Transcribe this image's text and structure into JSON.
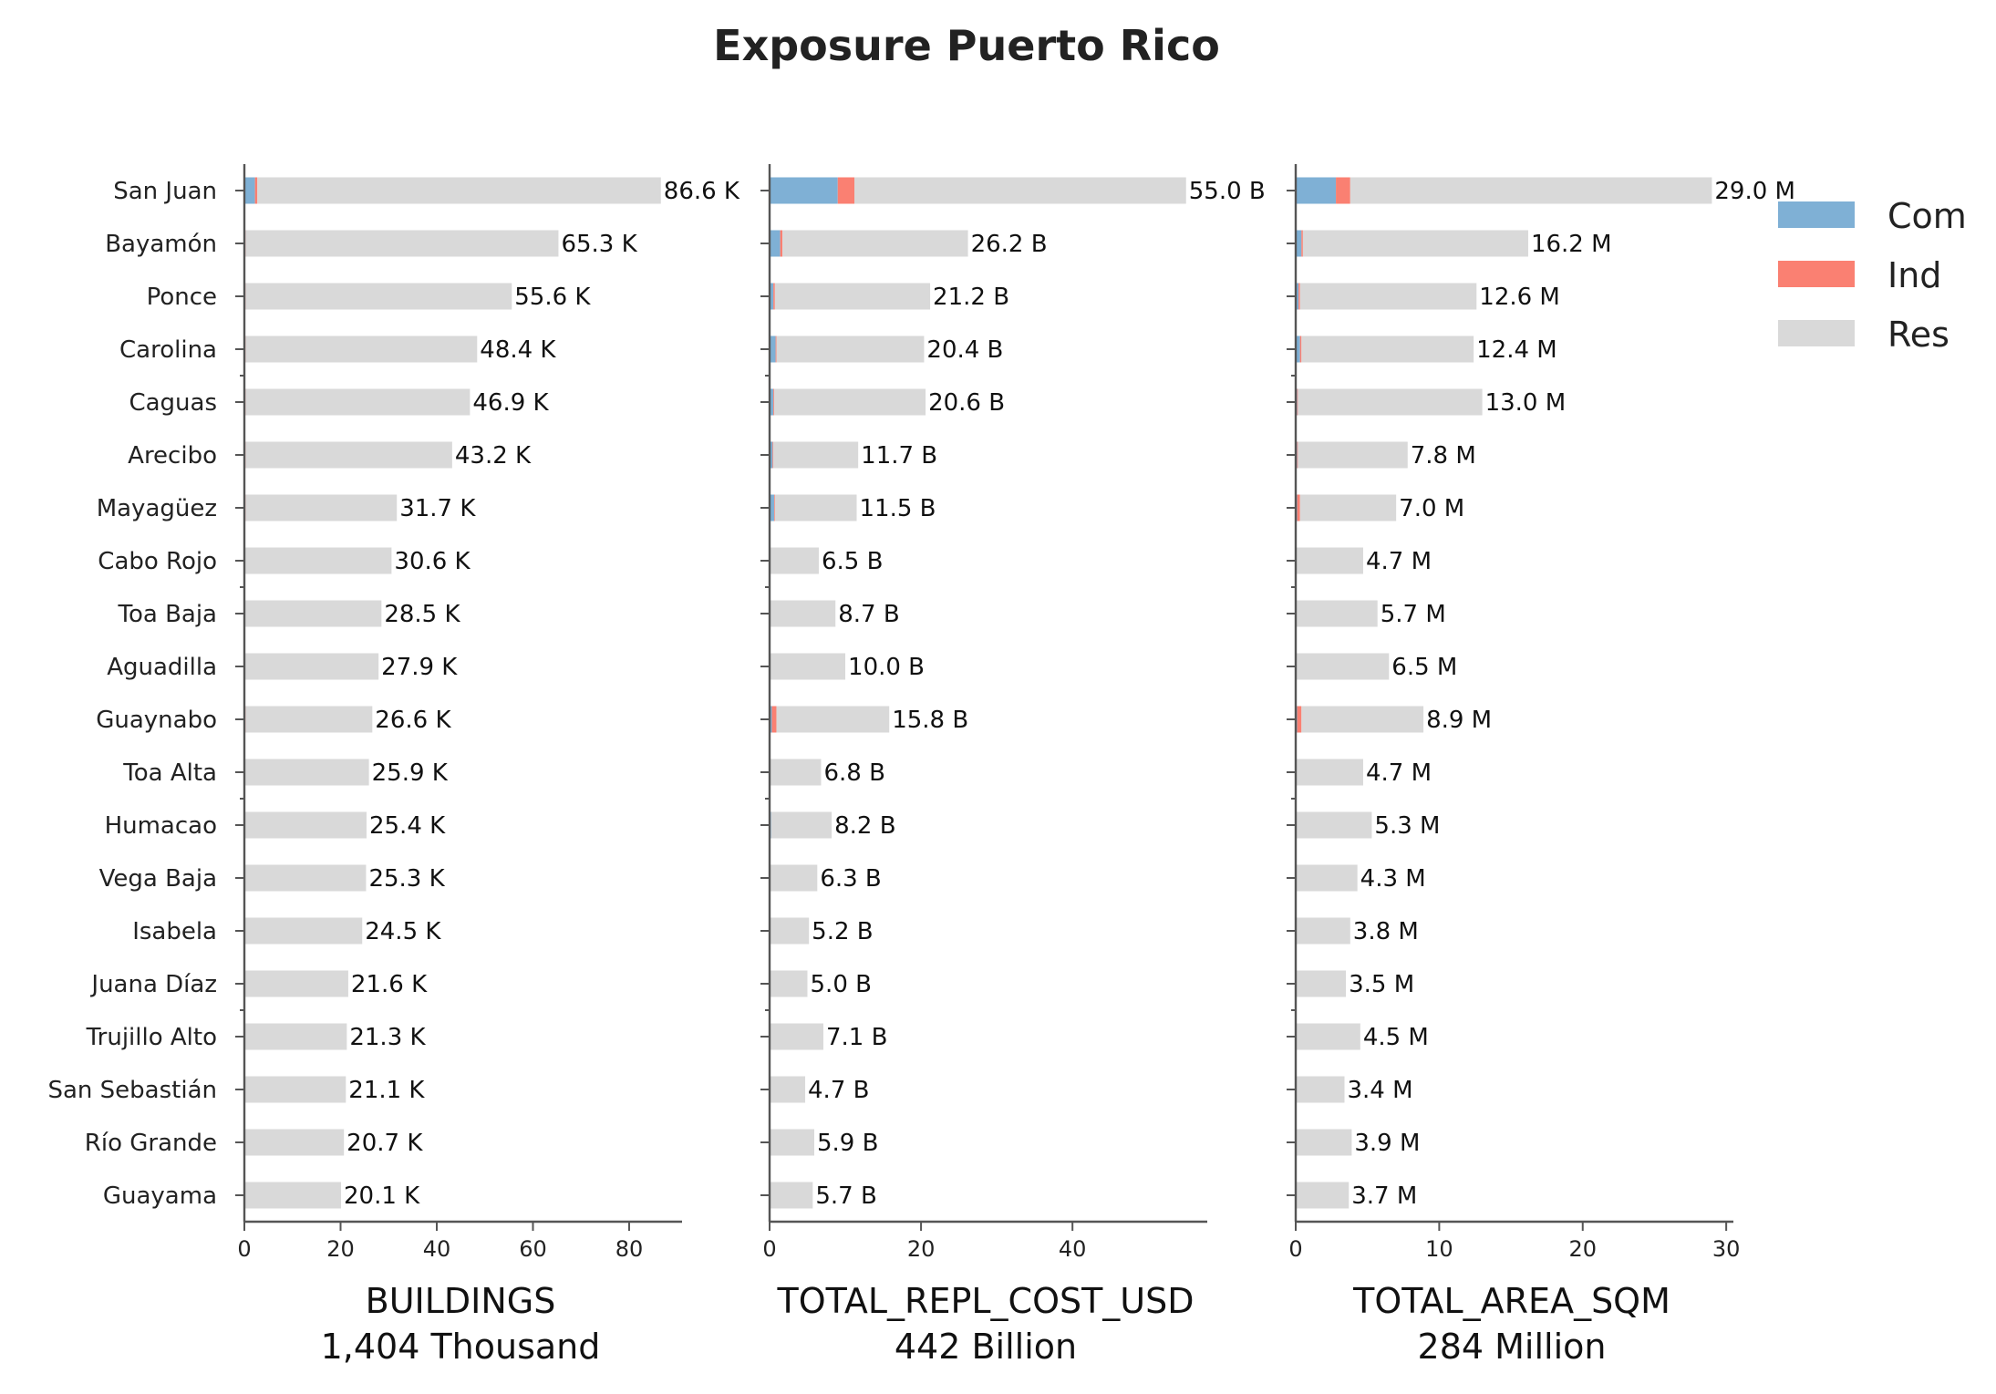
{
  "chart_data": {
    "type": "bar",
    "title": "Exposure Puerto Rico",
    "categories": [
      "San Juan",
      "Bayamón",
      "Ponce",
      "Carolina",
      "Caguas",
      "Arecibo",
      "Mayagüez",
      "Cabo Rojo",
      "Toa Baja",
      "Aguadilla",
      "Guaynabo",
      "Toa Alta",
      "Humacao",
      "Vega Baja",
      "Isabela",
      "Juana Díaz",
      "Trujillo Alto",
      "San Sebastián",
      "Río Grande",
      "Guayama"
    ],
    "legend": [
      {
        "name": "Com",
        "color": "#7fb0d5"
      },
      {
        "name": "Ind",
        "color": "#fa8072"
      },
      {
        "name": "Res",
        "color": "#d9d9d9"
      }
    ],
    "legend_position": "right",
    "grid": false,
    "panels": [
      {
        "xlabel": "BUILDINGS",
        "total_label": "1,404 Thousand",
        "xlim": [
          0,
          91
        ],
        "xticks": [
          0,
          20,
          40,
          60,
          80
        ],
        "series": [
          {
            "name": "Com",
            "values": [
              2.2,
              0.2,
              0.2,
              0.2,
              0.2,
              0.2,
              0.2,
              0.1,
              0.1,
              0.1,
              0.2,
              0.1,
              0.1,
              0.1,
              0.1,
              0.1,
              0.1,
              0.1,
              0.1,
              0.1
            ]
          },
          {
            "name": "Ind",
            "values": [
              0.5,
              0.05,
              0.05,
              0.05,
              0.05,
              0.05,
              0.05,
              0.05,
              0.05,
              0.05,
              0.05,
              0.05,
              0.05,
              0.05,
              0.05,
              0.05,
              0.05,
              0.05,
              0.05,
              0.05
            ]
          },
          {
            "name": "Res",
            "values": [
              83.9,
              65.05,
              55.35,
              48.15,
              46.65,
              42.95,
              31.45,
              30.45,
              28.35,
              27.75,
              26.35,
              25.75,
              25.25,
              25.15,
              24.35,
              21.45,
              21.15,
              20.95,
              20.55,
              19.95
            ]
          }
        ],
        "totals": [
          86.6,
          65.3,
          55.6,
          48.4,
          46.9,
          43.2,
          31.7,
          30.6,
          28.5,
          27.9,
          26.6,
          25.9,
          25.4,
          25.3,
          24.5,
          21.6,
          21.3,
          21.1,
          20.7,
          20.1
        ],
        "labels": [
          "86.6 K",
          "65.3 K",
          "55.6 K",
          "48.4 K",
          "46.9 K",
          "43.2 K",
          "31.7 K",
          "30.6 K",
          "28.5 K",
          "27.9 K",
          "26.6 K",
          "25.9 K",
          "25.4 K",
          "25.3 K",
          "24.5 K",
          "21.6 K",
          "21.3 K",
          "21.1 K",
          "20.7 K",
          "20.1 K"
        ]
      },
      {
        "xlabel": "TOTAL_REPL_COST_USD",
        "total_label": "442 Billion",
        "xlim": [
          0,
          57.8
        ],
        "xticks": [
          0,
          20,
          40
        ],
        "series": [
          {
            "name": "Com",
            "values": [
              9.0,
              1.4,
              0.5,
              0.8,
              0.5,
              0.4,
              0.6,
              0.1,
              0.1,
              0.1,
              0.3,
              0.1,
              0.2,
              0.1,
              0.1,
              0.1,
              0.1,
              0.1,
              0.1,
              0.1
            ]
          },
          {
            "name": "Ind",
            "values": [
              2.2,
              0.3,
              0.2,
              0.1,
              0.1,
              0.1,
              0.1,
              0.0,
              0.0,
              0.0,
              0.6,
              0.0,
              0.0,
              0.0,
              0.0,
              0.0,
              0.0,
              0.0,
              0.0,
              0.0
            ]
          },
          {
            "name": "Res",
            "values": [
              43.8,
              24.5,
              20.5,
              19.5,
              20.0,
              11.2,
              10.8,
              6.4,
              8.6,
              9.9,
              14.9,
              6.7,
              8.0,
              6.2,
              5.1,
              4.9,
              7.0,
              4.6,
              5.8,
              5.6
            ]
          }
        ],
        "totals": [
          55.0,
          26.2,
          21.2,
          20.4,
          20.6,
          11.7,
          11.5,
          6.5,
          8.7,
          10.0,
          15.8,
          6.8,
          8.2,
          6.3,
          5.2,
          5.0,
          7.1,
          4.7,
          5.9,
          5.7
        ],
        "labels": [
          "55.0 B",
          "26.2 B",
          "21.2 B",
          "20.4 B",
          "20.6 B",
          "11.7 B",
          "11.5 B",
          "6.5 B",
          "8.7 B",
          "10.0 B",
          "15.8 B",
          "6.8 B",
          "8.2 B",
          "6.3 B",
          "5.2 B",
          "5.0 B",
          "7.1 B",
          "4.7 B",
          "5.9 B",
          "5.7 B"
        ]
      },
      {
        "xlabel": "TOTAL_AREA_SQM",
        "total_label": "284 Million",
        "xlim": [
          0,
          30.5
        ],
        "xticks": [
          0,
          10,
          20,
          30
        ],
        "series": [
          {
            "name": "Com",
            "values": [
              2.8,
              0.4,
              0.2,
              0.3,
              0.1,
              0.1,
              0.1,
              0.05,
              0.05,
              0.05,
              0.1,
              0.05,
              0.05,
              0.05,
              0.05,
              0.05,
              0.05,
              0.05,
              0.05,
              0.05
            ]
          },
          {
            "name": "Ind",
            "values": [
              1.0,
              0.1,
              0.1,
              0.1,
              0.05,
              0.05,
              0.2,
              0.0,
              0.0,
              0.0,
              0.3,
              0.0,
              0.0,
              0.0,
              0.0,
              0.0,
              0.0,
              0.0,
              0.0,
              0.0
            ]
          },
          {
            "name": "Res",
            "values": [
              25.2,
              15.7,
              12.3,
              12.0,
              12.85,
              7.65,
              6.7,
              4.65,
              5.65,
              6.45,
              8.5,
              4.65,
              5.25,
              4.25,
              3.75,
              3.45,
              4.45,
              3.35,
              3.85,
              3.65
            ]
          }
        ],
        "totals": [
          29.0,
          16.2,
          12.6,
          12.4,
          13.0,
          7.8,
          7.0,
          4.7,
          5.7,
          6.5,
          8.9,
          4.7,
          5.3,
          4.3,
          3.8,
          3.5,
          4.5,
          3.4,
          3.9,
          3.7
        ],
        "labels": [
          "29.0 M",
          "16.2 M",
          "12.6 M",
          "12.4 M",
          "13.0 M",
          "7.8 M",
          "7.0 M",
          "4.7 M",
          "5.7 M",
          "6.5 M",
          "8.9 M",
          "4.7 M",
          "5.3 M",
          "4.3 M",
          "3.8 M",
          "3.5 M",
          "4.5 M",
          "3.4 M",
          "3.9 M",
          "3.7 M"
        ]
      }
    ]
  }
}
